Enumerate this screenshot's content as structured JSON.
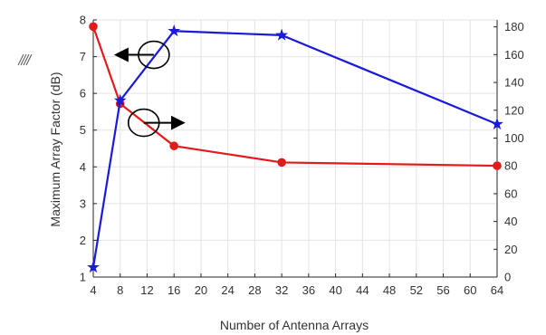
{
  "chart_data": {
    "type": "line",
    "xlabel": "Number of Antenna Arrays",
    "ylabel_left": "Maximum Array Factor (dB)",
    "ylabel_right": "",
    "x_ticks": [
      4,
      8,
      12,
      16,
      20,
      24,
      28,
      32,
      36,
      40,
      44,
      48,
      52,
      56,
      60,
      64
    ],
    "xlim": [
      4,
      64
    ],
    "ylim_left": [
      1,
      8
    ],
    "ylim_right": [
      0,
      185
    ],
    "yticks_left": [
      1,
      2,
      3,
      4,
      5,
      6,
      7,
      8
    ],
    "yticks_right": [
      0,
      20,
      40,
      60,
      80,
      100,
      120,
      140,
      160,
      180
    ],
    "grid": true,
    "series": [
      {
        "axis": "left",
        "color": "#e31a1c",
        "marker": "circle",
        "x": [
          4,
          8,
          16,
          32,
          64
        ],
        "y": [
          7.82,
          5.72,
          4.57,
          4.12,
          4.03
        ]
      },
      {
        "axis": "right",
        "color": "#1a1adb",
        "marker": "star",
        "x": [
          4,
          8,
          16,
          32,
          64
        ],
        "y": [
          7,
          127,
          177,
          174,
          110
        ]
      }
    ],
    "annotations": [
      {
        "type": "ellipse-arrow",
        "direction": "left",
        "x": 13,
        "y_left": 7.05
      },
      {
        "type": "ellipse-arrow",
        "direction": "right",
        "x": 11.5,
        "y_left": 5.2
      }
    ]
  },
  "colors": {
    "red_series": "#e31a1c",
    "blue_series": "#1a1adb",
    "axis": "#262626",
    "grid": "#e3e3e3",
    "text": "#333333"
  }
}
